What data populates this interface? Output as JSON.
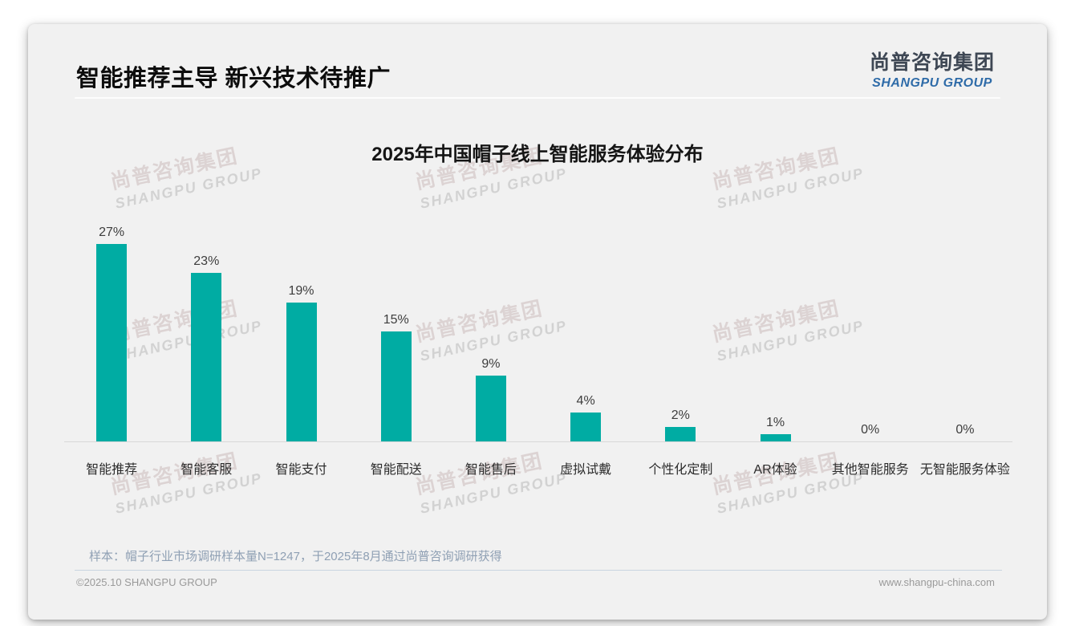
{
  "header": {
    "title": "智能推荐主导 新兴技术待推广",
    "logo": {
      "cn": "尚普咨询集团",
      "en": "SHANGPU GROUP"
    }
  },
  "chart_data": {
    "type": "bar",
    "title": "2025年中国帽子线上智能服务体验分布",
    "categories": [
      "智能推荐",
      "智能客服",
      "智能支付",
      "智能配送",
      "智能售后",
      "虚拟试戴",
      "个性化定制",
      "AR体验",
      "其他智能服务",
      "无智能服务体验"
    ],
    "values": [
      27,
      23,
      19,
      15,
      9,
      4,
      2,
      1,
      0,
      0
    ],
    "value_suffix": "%",
    "xlabel": "",
    "ylabel": "",
    "ylim": [
      0,
      30
    ],
    "grid": false,
    "legend": null
  },
  "watermark": {
    "cn": "尚普咨询集团",
    "en": "SHANGPU GROUP"
  },
  "footnote": "样本：帽子行业市场调研样本量N=1247，于2025年8月通过尚普咨询调研获得",
  "footer": {
    "left": "©2025.10 SHANGPU GROUP",
    "right": "www.shangpu-china.com"
  },
  "colors": {
    "bar": "#00ACA3",
    "logo_blue": "#2E6BA8",
    "logo_dark": "#3E4754",
    "note_text": "#8FA0B4",
    "note_divider": "#C9D4E0",
    "axis_line": "#D8D8D8",
    "card_background": "#F1F1F1"
  }
}
